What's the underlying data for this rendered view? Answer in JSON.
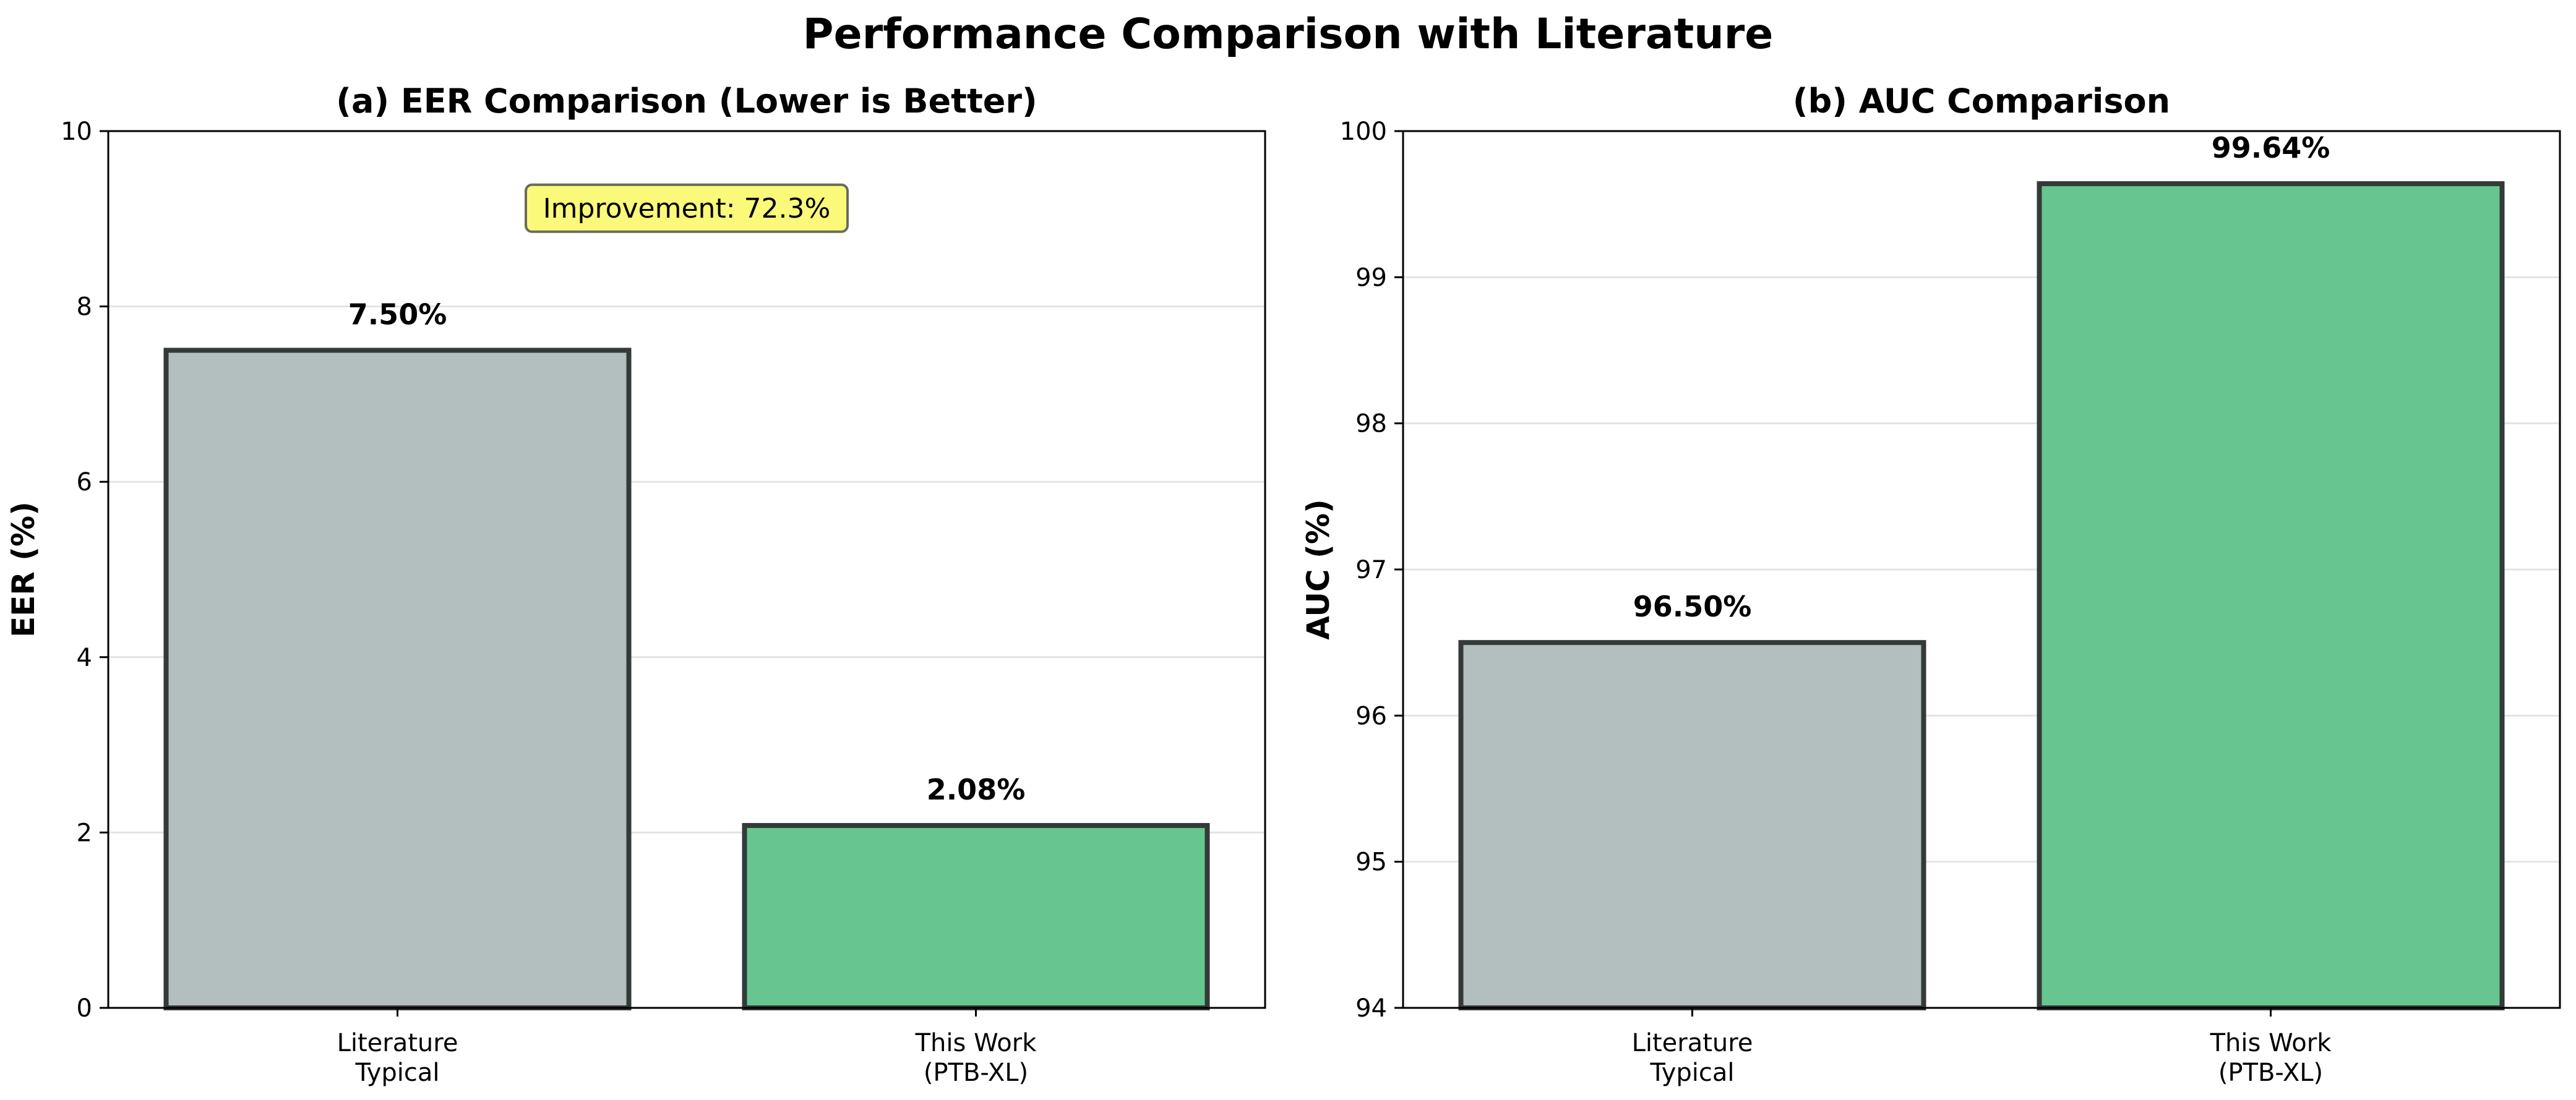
{
  "figure": {
    "title": "Performance Comparison with Literature"
  },
  "colors": {
    "literature": "#b3bfbe",
    "this_work": "#67c58f",
    "bar_edge": "#333a38",
    "grid": "#e3e3e3",
    "annotation_fill": "#fbf97a",
    "annotation_edge": "#6b6b5a"
  },
  "chart_data": [
    {
      "type": "bar",
      "title": "(a) EER Comparison (Lower is Better)",
      "xlabel": "",
      "ylabel": "EER (%)",
      "categories": [
        "Literature\nTypical",
        "This Work\n(PTB-XL)"
      ],
      "values": [
        7.5,
        2.08
      ],
      "value_labels": [
        "7.50%",
        "2.08%"
      ],
      "ylim": [
        0,
        10
      ],
      "yticks": [
        0,
        2,
        4,
        6,
        8,
        10
      ],
      "ytick_labels": [
        "0",
        "2",
        "4",
        "6",
        "8",
        "10"
      ],
      "grid": true,
      "annotation": "Improvement: 72.3%"
    },
    {
      "type": "bar",
      "title": "(b) AUC Comparison",
      "xlabel": "",
      "ylabel": "AUC (%)",
      "categories": [
        "Literature\nTypical",
        "This Work\n(PTB-XL)"
      ],
      "values": [
        96.5,
        99.64
      ],
      "value_labels": [
        "96.50%",
        "99.64%"
      ],
      "ylim": [
        94,
        100
      ],
      "yticks": [
        94,
        95,
        96,
        97,
        98,
        99,
        100
      ],
      "ytick_labels": [
        "94",
        "95",
        "96",
        "97",
        "98",
        "99",
        "100"
      ],
      "grid": true
    }
  ]
}
